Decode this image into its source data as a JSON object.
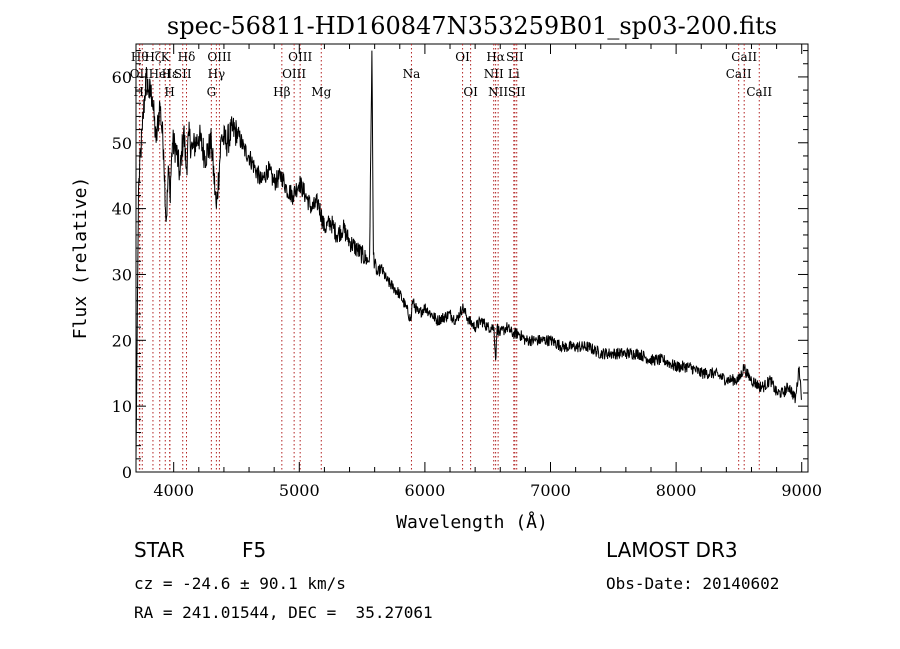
{
  "chart_data": {
    "type": "line",
    "title": "spec-56811-HD160847N353259B01_sp03-200.fits",
    "xlabel": "Wavelength (Å)",
    "ylabel": "Flux (relative)",
    "xlim": [
      3700,
      9050
    ],
    "ylim": [
      0,
      65
    ],
    "xticks": [
      4000,
      5000,
      6000,
      7000,
      8000,
      9000
    ],
    "yticks": [
      0,
      10,
      20,
      30,
      40,
      50,
      60
    ],
    "series": [
      {
        "name": "flux",
        "x": [
          3700,
          3720,
          3750,
          3780,
          3800,
          3830,
          3860,
          3890,
          3920,
          3940,
          3960,
          3970,
          3990,
          4020,
          4050,
          4080,
          4100,
          4120,
          4150,
          4200,
          4250,
          4300,
          4340,
          4380,
          4420,
          4470,
          4520,
          4560,
          4600,
          4650,
          4700,
          4750,
          4800,
          4860,
          4900,
          4950,
          5000,
          5050,
          5100,
          5150,
          5200,
          5250,
          5300,
          5350,
          5400,
          5450,
          5500,
          5550,
          5560,
          5578,
          5590,
          5620,
          5650,
          5700,
          5750,
          5800,
          5850,
          5890,
          5900,
          5950,
          6000,
          6050,
          6100,
          6200,
          6250,
          6300,
          6350,
          6400,
          6450,
          6500,
          6550,
          6563,
          6575,
          6600,
          6650,
          6700,
          6750,
          6800,
          6900,
          7000,
          7100,
          7200,
          7300,
          7400,
          7500,
          7600,
          7700,
          7800,
          7900,
          8000,
          8100,
          8200,
          8300,
          8400,
          8500,
          8542,
          8560,
          8600,
          8662,
          8700,
          8750,
          8800,
          8850,
          8900,
          8950,
          8980,
          9000
        ],
        "y": [
          2,
          43,
          52,
          60,
          58,
          57,
          50,
          56,
          49,
          38,
          46,
          42,
          50,
          49,
          45,
          52,
          46,
          51,
          49,
          51,
          48,
          50,
          40,
          51,
          50,
          52,
          51,
          49,
          48,
          46,
          44,
          46,
          44,
          45,
          43,
          42,
          44,
          42,
          40,
          41,
          37,
          38,
          36,
          37,
          35,
          34,
          33,
          32,
          33,
          64,
          33,
          30,
          31,
          29,
          28,
          27,
          25,
          23,
          26,
          24,
          25,
          24,
          23,
          24,
          23,
          25,
          23,
          22,
          23,
          22,
          22,
          17,
          22,
          21,
          22,
          21,
          21,
          20,
          20,
          20,
          19,
          19,
          19,
          18,
          18,
          18,
          18,
          17,
          17,
          16,
          16,
          15,
          15,
          14,
          14,
          16,
          15,
          14,
          13,
          13,
          14,
          12,
          12,
          13,
          11,
          16,
          11
        ]
      }
    ],
    "lines": [
      {
        "wl": 3730,
        "label": "Hθ",
        "row": 1
      },
      {
        "wl": 3727,
        "label": "OII",
        "row": 2
      },
      {
        "wl": 3750,
        "label": "Hη",
        "row": 3
      },
      {
        "wl": 3835,
        "label": "Hζ",
        "row": 1
      },
      {
        "wl": 3889,
        "label": "HeI",
        "row": 2
      },
      {
        "wl": 3933,
        "label": "K",
        "row": 1
      },
      {
        "wl": 3968,
        "label": "H",
        "row": 3
      },
      {
        "wl": 3970,
        "label": "Hε",
        "row": 2
      },
      {
        "wl": 4072,
        "label": "SII",
        "row": 2
      },
      {
        "wl": 4102,
        "label": "Hδ",
        "row": 1
      },
      {
        "wl": 4300,
        "label": "G",
        "row": 3
      },
      {
        "wl": 4340,
        "label": "Hγ",
        "row": 2
      },
      {
        "wl": 4364,
        "label": "OIII",
        "row": 1
      },
      {
        "wl": 4861,
        "label": "Hβ",
        "row": 3
      },
      {
        "wl": 4959,
        "label": "OIII",
        "row": 2
      },
      {
        "wl": 5007,
        "label": "OIII",
        "row": 1
      },
      {
        "wl": 5175,
        "label": "Mg",
        "row": 3
      },
      {
        "wl": 5893,
        "label": "Na",
        "row": 2
      },
      {
        "wl": 6300,
        "label": "OI",
        "row": 1
      },
      {
        "wl": 6364,
        "label": "OI",
        "row": 3
      },
      {
        "wl": 6548,
        "label": "NII",
        "row": 2
      },
      {
        "wl": 6563,
        "label": "Hα",
        "row": 1
      },
      {
        "wl": 6583,
        "label": "NII",
        "row": 3
      },
      {
        "wl": 6708,
        "label": "Li",
        "row": 2
      },
      {
        "wl": 6716,
        "label": "SII",
        "row": 1
      },
      {
        "wl": 6731,
        "label": "SII",
        "row": 3
      },
      {
        "wl": 8498,
        "label": "CaII",
        "row": 2
      },
      {
        "wl": 8542,
        "label": "CaII",
        "row": 1
      },
      {
        "wl": 8662,
        "label": "CaII",
        "row": 3
      }
    ]
  },
  "info": {
    "object_class": "STAR",
    "subclass": "F5",
    "survey": "LAMOST DR3",
    "cz": "cz = -24.6 ± 90.1 km/s",
    "obs_date": "Obs-Date: 20140602",
    "coords": "RA = 241.01544, DEC =  35.27061"
  }
}
